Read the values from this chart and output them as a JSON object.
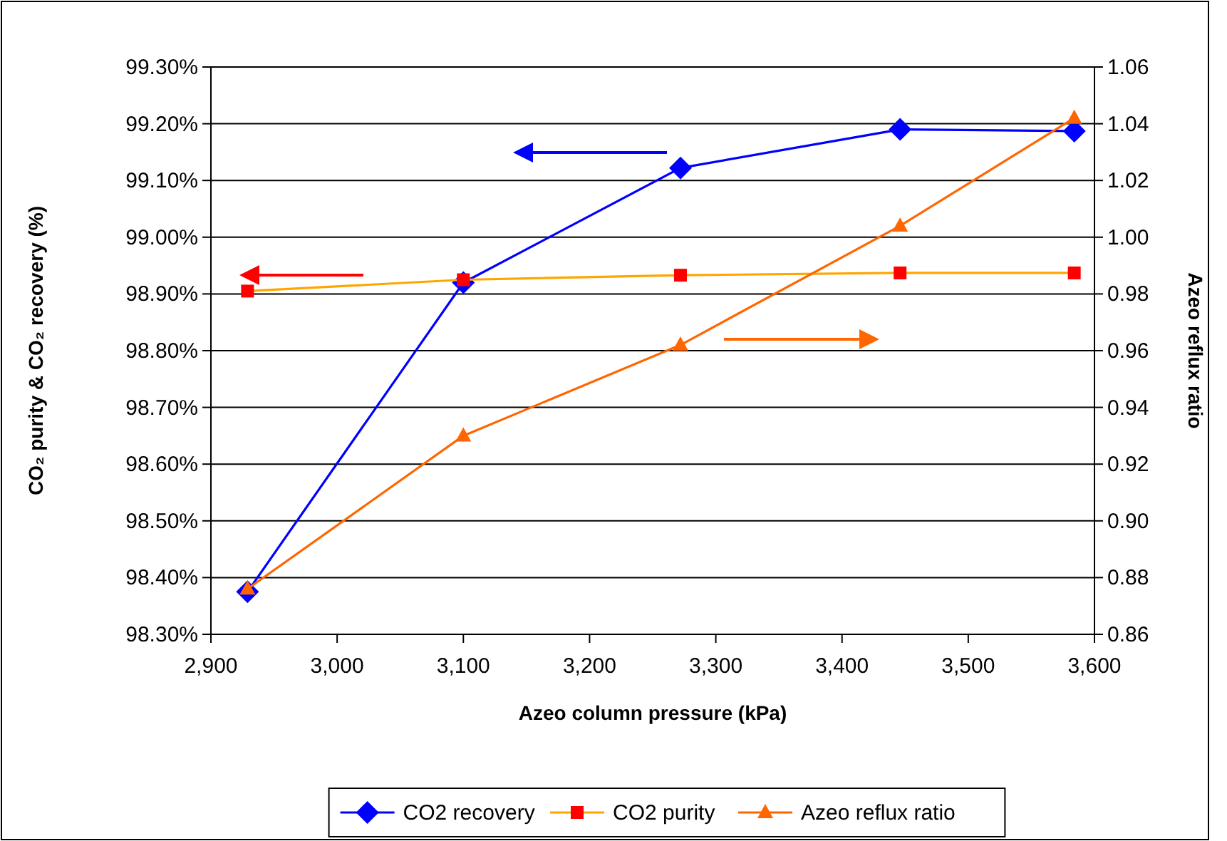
{
  "chart_data": {
    "type": "line",
    "xlabel": "Azeo column pressure (kPa)",
    "ylabel": "CO₂ purity & CO₂ recovery (%)",
    "y2label": "Azeo reflux ratio",
    "xlim": [
      2900,
      3600
    ],
    "xticks": [
      {
        "value": 2900,
        "label": "2,900"
      },
      {
        "value": 3000,
        "label": "3,000"
      },
      {
        "value": 3100,
        "label": "3,100"
      },
      {
        "value": 3200,
        "label": "3,200"
      },
      {
        "value": 3300,
        "label": "3,300"
      },
      {
        "value": 3400,
        "label": "3,400"
      },
      {
        "value": 3500,
        "label": "3,500"
      },
      {
        "value": 3600,
        "label": "3,600"
      }
    ],
    "ylim": [
      98.3,
      99.3
    ],
    "yticks": [
      {
        "value": 98.3,
        "label": "98.30%"
      },
      {
        "value": 98.4,
        "label": "98.40%"
      },
      {
        "value": 98.5,
        "label": "98.50%"
      },
      {
        "value": 98.6,
        "label": "98.60%"
      },
      {
        "value": 98.7,
        "label": "98.70%"
      },
      {
        "value": 98.8,
        "label": "98.80%"
      },
      {
        "value": 98.9,
        "label": "98.90%"
      },
      {
        "value": 99.0,
        "label": "99.00%"
      },
      {
        "value": 99.1,
        "label": "99.10%"
      },
      {
        "value": 99.2,
        "label": "99.20%"
      },
      {
        "value": 99.3,
        "label": "99.30%"
      }
    ],
    "y2lim": [
      0.86,
      1.06
    ],
    "y2ticks": [
      {
        "value": 0.86,
        "label": "0.86"
      },
      {
        "value": 0.88,
        "label": "0.88"
      },
      {
        "value": 0.9,
        "label": "0.90"
      },
      {
        "value": 0.92,
        "label": "0.92"
      },
      {
        "value": 0.94,
        "label": "0.94"
      },
      {
        "value": 0.96,
        "label": "0.96"
      },
      {
        "value": 0.98,
        "label": "0.98"
      },
      {
        "value": 1.0,
        "label": "1.00"
      },
      {
        "value": 1.02,
        "label": "1.02"
      },
      {
        "value": 1.04,
        "label": "1.04"
      },
      {
        "value": 1.06,
        "label": "1.06"
      }
    ],
    "x": [
      2929,
      3100,
      3272,
      3446,
      3584
    ],
    "grid": "y",
    "legend": "bottom",
    "series": [
      {
        "name": "CO2 recovery",
        "color": "#0000ff",
        "marker": "diamond",
        "values": [
          98.375,
          98.92,
          99.122,
          99.19,
          99.187
        ]
      },
      {
        "name": "CO2 purity",
        "color": "#ffa500",
        "colors": [
          "#ff0000",
          "#ff0000",
          "#ff0000",
          "#ff0000",
          "#ff0000"
        ],
        "marker": "square",
        "values": [
          98.905,
          98.925,
          98.933,
          98.937,
          98.937
        ]
      },
      {
        "name": "Azeo reflux ratio",
        "color": "#ff6600",
        "marker": "triangle",
        "axis": "y2",
        "values": [
          0.876,
          0.93,
          0.962,
          1.004,
          1.042
        ]
      }
    ]
  }
}
